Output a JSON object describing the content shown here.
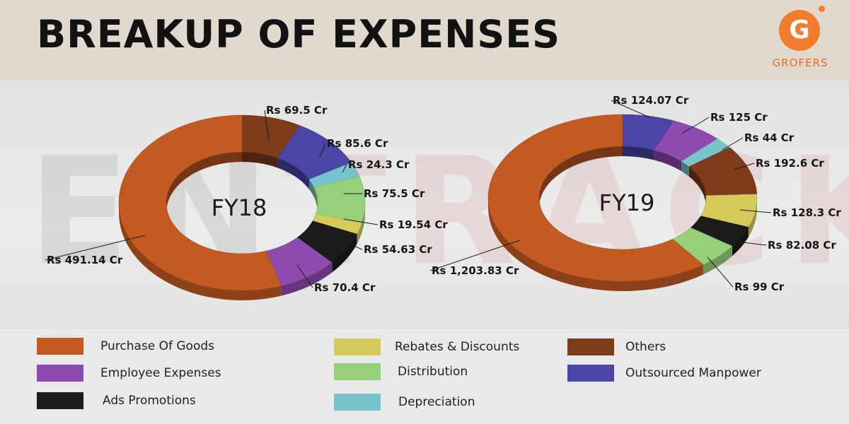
{
  "header": {
    "title": "BREAKUP OF EXPENSES",
    "logo_glyph": "G",
    "logo_text": "GROFERS",
    "logo_color": "#f07c2c"
  },
  "watermark": {
    "part1": "EN",
    "part2": "TRACKR"
  },
  "colors": {
    "Purchase Of Goods": "#c25a22",
    "Others": "#7e3c1a",
    "Outsourced Manpower": "#4b45a8",
    "Depreciation": "#77c4cc",
    "Distribution": "#97d07a",
    "Rebates & Discounts": "#d6cb5a",
    "Ads Promotions": "#1c1c1c",
    "Employee Expenses": "#8f4aad"
  },
  "legend": [
    {
      "label": "Purchase Of Goods",
      "color": "#c25a22"
    },
    {
      "label": "Employee Expenses",
      "color": "#8f4aad"
    },
    {
      "label": "Ads Promotions",
      "color": "#1c1c1c"
    },
    {
      "label": "Rebates & Discounts",
      "color": "#d6cb5a"
    },
    {
      "label": "Distribution",
      "color": "#97d07a"
    },
    {
      "label": "Depreciation",
      "color": "#77c4cc"
    },
    {
      "label": "Others",
      "color": "#7e3c1a"
    },
    {
      "label": "Outsourced Manpower",
      "color": "#4b45a8"
    }
  ],
  "chart_data": [
    {
      "type": "pie",
      "title": "FY18",
      "slices": [
        {
          "name": "Others",
          "value": 69.5,
          "label": "Rs 69.5 Cr"
        },
        {
          "name": "Outsourced Manpower",
          "value": 85.6,
          "label": "Rs 85.6 Cr"
        },
        {
          "name": "Depreciation",
          "value": 24.3,
          "label": "Rs 24.3 Cr"
        },
        {
          "name": "Distribution",
          "value": 75.5,
          "label": "Rs 75.5 Cr"
        },
        {
          "name": "Rebates & Discounts",
          "value": 19.54,
          "label": "Rs 19.54 Cr"
        },
        {
          "name": "Ads Promotions",
          "value": 54.63,
          "label": "Rs 54.63 Cr"
        },
        {
          "name": "Employee Expenses",
          "value": 70.4,
          "label": "Rs 70.4 Cr"
        },
        {
          "name": "Purchase Of Goods",
          "value": 491.14,
          "label": "Rs 491.14 Cr"
        }
      ]
    },
    {
      "type": "pie",
      "title": "FY19",
      "slices": [
        {
          "name": "Outsourced Manpower",
          "value": 124.07,
          "label": "Rs 124.07 Cr"
        },
        {
          "name": "Employee Expenses",
          "value": 125,
          "label": "Rs 125 Cr"
        },
        {
          "name": "Depreciation",
          "value": 44,
          "label": "Rs 44 Cr"
        },
        {
          "name": "Others",
          "value": 192.6,
          "label": "Rs 192.6 Cr"
        },
        {
          "name": "Rebates & Discounts",
          "value": 128.3,
          "label": "Rs 128.3 Cr"
        },
        {
          "name": "Ads Promotions",
          "value": 82.08,
          "label": "Rs 82.08 Cr"
        },
        {
          "name": "Distribution",
          "value": 99,
          "label": "Rs 99 Cr"
        },
        {
          "name": "Purchase Of Goods",
          "value": 1203.83,
          "label": "Rs 1,203.83 Cr"
        }
      ]
    }
  ]
}
